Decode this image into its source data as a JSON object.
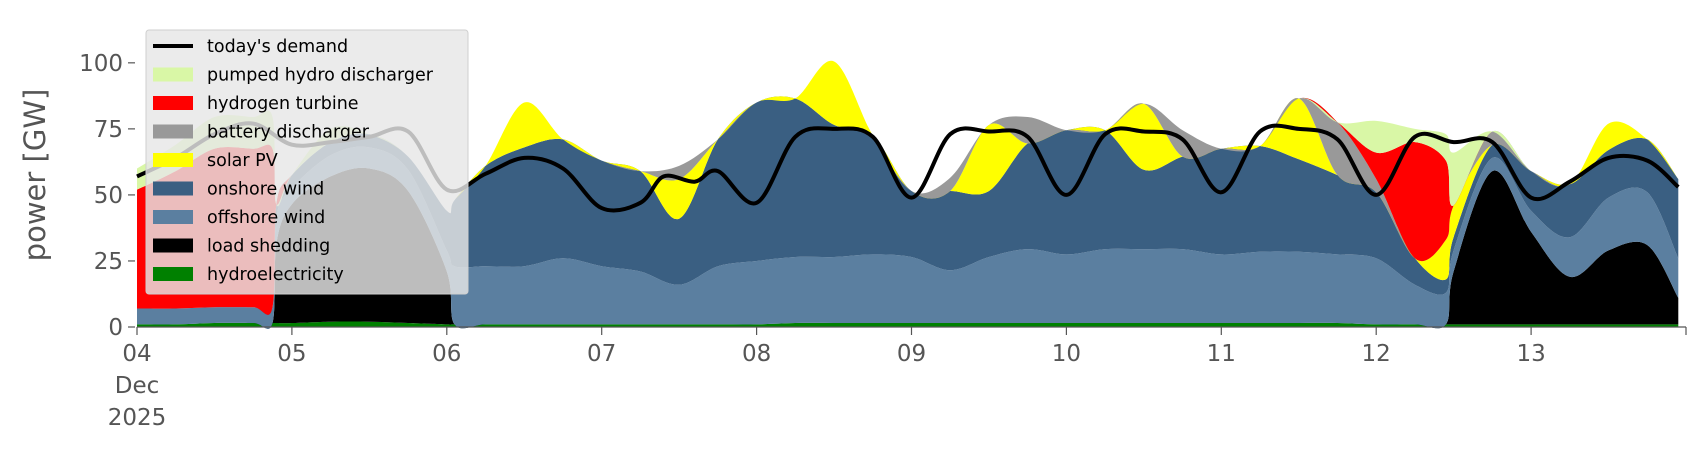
{
  "chart_data": {
    "type": "area",
    "title": "",
    "xlabel": "",
    "ylabel": "power [GW]",
    "ylim": [
      0,
      120
    ],
    "xlim_days": [
      4,
      14
    ],
    "grid": false,
    "legend_position": "top-left",
    "x_ticks": [
      {
        "day": 4,
        "label": "04",
        "sublabel_month": "Dec",
        "sublabel_year": "2025"
      },
      {
        "day": 5,
        "label": "05"
      },
      {
        "day": 6,
        "label": "06"
      },
      {
        "day": 7,
        "label": "07"
      },
      {
        "day": 8,
        "label": "08"
      },
      {
        "day": 9,
        "label": "09"
      },
      {
        "day": 10,
        "label": "10"
      },
      {
        "day": 11,
        "label": "11"
      },
      {
        "day": 12,
        "label": "12"
      },
      {
        "day": 13,
        "label": "13"
      }
    ],
    "y_ticks": [
      {
        "value": 0,
        "label": "0"
      },
      {
        "value": 25,
        "label": "25"
      },
      {
        "value": 50,
        "label": "50"
      },
      {
        "value": 75,
        "label": "75"
      },
      {
        "value": 100,
        "label": "100"
      }
    ],
    "x": [
      4.0,
      4.25,
      4.5,
      4.75,
      4.875,
      4.9,
      5.0,
      5.25,
      5.5,
      5.75,
      6.0,
      6.05,
      6.25,
      6.5,
      6.75,
      7.0,
      7.25,
      7.5,
      7.75,
      8.0,
      8.25,
      8.5,
      8.75,
      9.0,
      9.25,
      9.5,
      9.75,
      10.0,
      10.25,
      10.5,
      10.75,
      11.0,
      11.25,
      11.5,
      11.75,
      12.0,
      12.25,
      12.45,
      12.5,
      12.75,
      13.0,
      13.25,
      13.5,
      13.75,
      13.95
    ],
    "series": [
      {
        "name": "hydroelectricity",
        "color": "#008000",
        "values": [
          1,
          1,
          1.5,
          1.5,
          1.5,
          1.5,
          1.5,
          2,
          2,
          1.5,
          1,
          1,
          1,
          1,
          1,
          1,
          1,
          1,
          1,
          1,
          1.5,
          1.5,
          1.5,
          1.5,
          1.5,
          1.5,
          1.5,
          1.5,
          1.5,
          1.5,
          1.5,
          1.5,
          1.5,
          1.5,
          1.5,
          1,
          1,
          1,
          1,
          1,
          1,
          1,
          1,
          1,
          1
        ]
      },
      {
        "name": "load shedding",
        "color": "#000000",
        "values": [
          0,
          0,
          0,
          0,
          0,
          30,
          45,
          55,
          58,
          50,
          20,
          0,
          0,
          0,
          0,
          0,
          0,
          0,
          0,
          0,
          0,
          0,
          0,
          0,
          0,
          0,
          0,
          0,
          0,
          0,
          0,
          0,
          0,
          0,
          0,
          0,
          0,
          0,
          20,
          58,
          35,
          18,
          28,
          30,
          10
        ]
      },
      {
        "name": "offshore wind",
        "color": "#5b7fa0",
        "values": [
          6,
          6,
          6,
          6,
          6,
          10,
          6,
          8,
          8,
          8,
          8,
          22,
          22,
          22,
          25,
          22,
          20,
          15,
          22,
          24,
          25,
          25,
          26,
          25,
          20,
          25,
          28,
          26,
          28,
          28,
          28,
          26,
          27,
          27,
          26,
          25,
          15,
          12,
          8,
          5,
          8,
          15,
          20,
          20,
          15
        ]
      },
      {
        "name": "onshore wind",
        "color": "#3a5f82",
        "values": [
          0,
          0,
          0,
          0,
          0,
          5,
          5,
          5,
          5,
          5,
          15,
          25,
          38,
          45,
          45,
          40,
          38,
          25,
          48,
          60,
          60,
          50,
          45,
          25,
          30,
          25,
          40,
          47,
          45,
          30,
          35,
          40,
          40,
          35,
          30,
          25,
          10,
          5,
          5,
          5,
          15,
          20,
          18,
          20,
          30
        ]
      },
      {
        "name": "solar PV",
        "color": "#ffff00",
        "values": [
          0,
          0,
          0,
          0,
          0,
          0,
          0,
          0,
          0,
          0,
          0,
          0,
          0,
          17,
          0,
          0,
          0,
          15,
          0,
          0,
          0,
          24,
          0,
          0,
          0,
          25,
          0,
          0,
          0,
          25,
          0,
          0,
          0,
          23,
          0,
          0,
          0,
          15,
          12,
          0,
          0,
          0,
          10,
          0,
          0
        ]
      },
      {
        "name": "battery discharger",
        "color": "#999999",
        "values": [
          0,
          0,
          0,
          0,
          0,
          0,
          0,
          0,
          0,
          0,
          0,
          0,
          0,
          0,
          0,
          0,
          0,
          5,
          0,
          0,
          0,
          0,
          0,
          0,
          5,
          0,
          10,
          0,
          0,
          0,
          10,
          0,
          0,
          0,
          20,
          5,
          0,
          0,
          0,
          5,
          0,
          0,
          0,
          0,
          0
        ]
      },
      {
        "name": "hydrogen turbine",
        "color": "#ff0000",
        "values": [
          45,
          52,
          60,
          60,
          60,
          0,
          0,
          0,
          0,
          0,
          0,
          0,
          0,
          0,
          0,
          0,
          0,
          0,
          0,
          0,
          0,
          0,
          0,
          0,
          0,
          0,
          0,
          0,
          0,
          0,
          0,
          0,
          0,
          0,
          0,
          10,
          44,
          30,
          0,
          0,
          0,
          0,
          0,
          0,
          0
        ]
      },
      {
        "name": "pumped hydro discharger",
        "color": "#d9f7a6",
        "values": [
          8,
          10,
          12,
          12,
          12,
          0,
          0,
          5,
          0,
          0,
          0,
          0,
          0,
          0,
          0,
          0,
          0,
          0,
          0,
          0,
          0,
          0,
          0,
          0,
          0,
          0,
          0,
          0,
          0,
          0,
          0,
          0,
          0,
          0,
          0,
          12,
          5,
          10,
          20,
          0,
          0,
          0,
          0,
          0,
          0
        ]
      }
    ],
    "demand": {
      "name": "today's demand",
      "color": "#000000",
      "points": [
        [
          4.0,
          57
        ],
        [
          4.25,
          64
        ],
        [
          4.5,
          73
        ],
        [
          4.75,
          77
        ],
        [
          5.0,
          69
        ],
        [
          5.25,
          70
        ],
        [
          5.5,
          72
        ],
        [
          5.75,
          74
        ],
        [
          6.0,
          52
        ],
        [
          6.25,
          58
        ],
        [
          6.5,
          64
        ],
        [
          6.75,
          60
        ],
        [
          7.0,
          45
        ],
        [
          7.25,
          47
        ],
        [
          7.4,
          57
        ],
        [
          7.6,
          55
        ],
        [
          7.75,
          59
        ],
        [
          8.0,
          47
        ],
        [
          8.25,
          72
        ],
        [
          8.5,
          75
        ],
        [
          8.75,
          72
        ],
        [
          9.0,
          49
        ],
        [
          9.25,
          73
        ],
        [
          9.5,
          74
        ],
        [
          9.75,
          72
        ],
        [
          10.0,
          50
        ],
        [
          10.25,
          73
        ],
        [
          10.5,
          74
        ],
        [
          10.75,
          71
        ],
        [
          11.0,
          51
        ],
        [
          11.25,
          74
        ],
        [
          11.5,
          75
        ],
        [
          11.75,
          71
        ],
        [
          12.0,
          50
        ],
        [
          12.25,
          72
        ],
        [
          12.5,
          70
        ],
        [
          12.75,
          70
        ],
        [
          13.0,
          49
        ],
        [
          13.25,
          55
        ],
        [
          13.5,
          64
        ],
        [
          13.75,
          63
        ],
        [
          13.95,
          53
        ]
      ]
    }
  }
}
